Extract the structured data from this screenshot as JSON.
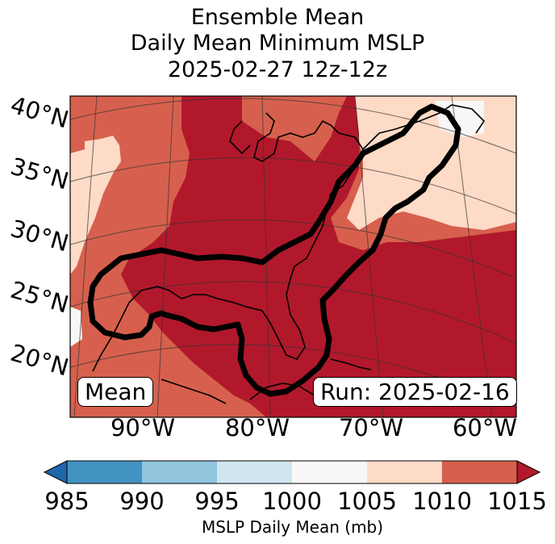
{
  "title": {
    "line1": "Ensemble Mean",
    "line2": "Daily Mean Minimum MSLP",
    "line3": "2025-02-27 12z-12z"
  },
  "map": {
    "latitude_labels": [
      "40°N",
      "35°N",
      "30°N",
      "25°N",
      "20°N"
    ],
    "longitude_labels": [
      "90°W",
      "80°W",
      "70°W",
      "60°W"
    ],
    "mean_label": "Mean",
    "run_label": "Run: 2025-02-16",
    "contour_color": "#000000"
  },
  "colorbar": {
    "label": "MSLP Daily Mean (mb)",
    "ticks": [
      "985",
      "990",
      "995",
      "1000",
      "1005",
      "1010",
      "1015"
    ],
    "colors": [
      "#2166ac",
      "#4393c3",
      "#92c5de",
      "#d1e5f0",
      "#f7f7f7",
      "#fddbc7",
      "#d6604d",
      "#b2182b"
    ],
    "extend": "both"
  }
}
